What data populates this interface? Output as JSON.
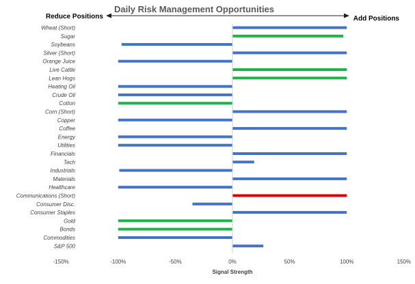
{
  "chart_data": {
    "type": "bar",
    "orientation": "horizontal",
    "title": "Daily Risk Management Opportunities",
    "left_annotation": "Reduce Positions",
    "right_annotation": "Add Positions",
    "xlabel": "Signal Strength",
    "xlim": [
      -150,
      150
    ],
    "xticks": [
      -150,
      -100,
      -50,
      0,
      50,
      100,
      150
    ],
    "xtick_labels": [
      "-150%",
      "-100%",
      "-50%",
      "0%",
      "50%",
      "100%",
      "150%"
    ],
    "gridlines": false,
    "legend": false,
    "colors": {
      "blue": "#4472C4",
      "green": "#21B24B",
      "red": "#E00000"
    },
    "categories": [
      "Wheat (Short)",
      "Sugar",
      "Soybeans",
      "Silver (Short)",
      "Orange Juice",
      "Live Cattle",
      "Lean Hogs",
      "Heating Oil",
      "Crude Oil",
      "Cotton",
      "Corn (Short)",
      "Copper",
      "Coffee",
      "Energy",
      "Utilities",
      "Financials",
      "Tech",
      "Industrials",
      "Materials",
      "Healthcare",
      "Communications (Short)",
      "Consumer Disc.",
      "Consumer Staples",
      "Gold",
      "Bonds",
      "Commodities",
      "S&P 500"
    ],
    "values": [
      100,
      97,
      -97,
      100,
      -100,
      100,
      100,
      -100,
      -100,
      -100,
      100,
      -100,
      100,
      -100,
      -100,
      100,
      19,
      -99,
      100,
      -100,
      100,
      -35,
      100,
      -100,
      -100,
      -100,
      27
    ],
    "bar_colors": [
      "blue",
      "green",
      "blue",
      "blue",
      "blue",
      "green",
      "green",
      "blue",
      "blue",
      "green",
      "blue",
      "blue",
      "blue",
      "blue",
      "blue",
      "blue",
      "blue",
      "blue",
      "blue",
      "blue",
      "red",
      "blue",
      "blue",
      "green",
      "green",
      "blue",
      "blue"
    ]
  }
}
